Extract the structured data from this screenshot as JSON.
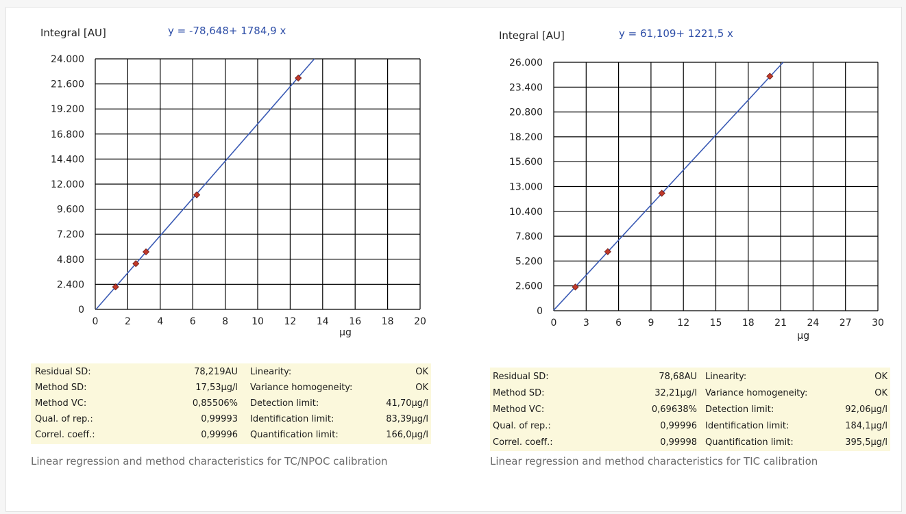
{
  "chart_data": [
    {
      "type": "scatter",
      "title": "",
      "equation": "y = -78,648+ 1784,9 x",
      "ylabel": "Integral [AU]",
      "xlabel": "µg",
      "xlim": [
        0,
        20
      ],
      "ylim": [
        0,
        24000
      ],
      "xticks": [
        "0",
        "2",
        "4",
        "6",
        "8",
        "10",
        "12",
        "14",
        "16",
        "18",
        "20"
      ],
      "yticks": [
        "0",
        "2.400",
        "4.800",
        "7.200",
        "9.600",
        "12.000",
        "14.400",
        "16.800",
        "19.200",
        "21.600",
        "24.000"
      ],
      "grid": true,
      "points": [
        {
          "x": 1.25,
          "y": 2150
        },
        {
          "x": 2.5,
          "y": 4380
        },
        {
          "x": 3.125,
          "y": 5510
        },
        {
          "x": 6.25,
          "y": 10970
        },
        {
          "x": 12.5,
          "y": 22160
        }
      ],
      "fit": {
        "intercept": -78.648,
        "slope": 1784.9
      },
      "colors": {
        "line": "#3b5bb5",
        "marker": "#c0392b",
        "grid": "#000000"
      }
    },
    {
      "type": "scatter",
      "title": "",
      "equation": "y = 61,109+ 1221,5 x",
      "ylabel": "Integral [AU]",
      "xlabel": "µg",
      "xlim": [
        0,
        30
      ],
      "ylim": [
        0,
        26000
      ],
      "xticks": [
        "0",
        "3",
        "6",
        "9",
        "12",
        "15",
        "18",
        "21",
        "24",
        "27",
        "30"
      ],
      "yticks": [
        "0",
        "2.600",
        "5.200",
        "7.800",
        "10.400",
        "13.000",
        "15.600",
        "18.200",
        "20.800",
        "23.400",
        "26.000"
      ],
      "grid": true,
      "points": [
        {
          "x": 2,
          "y": 2480
        },
        {
          "x": 5,
          "y": 6180
        },
        {
          "x": 10,
          "y": 12290
        },
        {
          "x": 20,
          "y": 24540
        }
      ],
      "fit": {
        "intercept": 61.109,
        "slope": 1221.5
      },
      "colors": {
        "line": "#3b5bb5",
        "marker": "#c0392b",
        "grid": "#000000"
      }
    }
  ],
  "tables": [
    {
      "rows": [
        {
          "l1": "Residual SD:",
          "v1": "78,219AU",
          "l2": "Linearity:",
          "v2": "OK"
        },
        {
          "l1": "Method SD:",
          "v1": "17,53µg/l",
          "l2": "Variance homogeneity:",
          "v2": "OK"
        },
        {
          "l1": "Method VC:",
          "v1": "0,85506%",
          "l2": "Detection limit:",
          "v2": "41,70µg/l"
        },
        {
          "l1": "Qual. of rep.:",
          "v1": "0,99993",
          "l2": "Identification limit:",
          "v2": "83,39µg/l"
        },
        {
          "l1": "Correl. coeff.:",
          "v1": "0,99996",
          "l2": "Quantification limit:",
          "v2": "166,0µg/l"
        }
      ]
    },
    {
      "rows": [
        {
          "l1": "Residual SD:",
          "v1": "78,68AU",
          "l2": "Linearity:",
          "v2": "OK"
        },
        {
          "l1": "Method SD:",
          "v1": "32,21µg/l",
          "l2": "Variance homogeneity:",
          "v2": "OK"
        },
        {
          "l1": "Method VC:",
          "v1": "0,69638%",
          "l2": "Detection limit:",
          "v2": "92,06µg/l"
        },
        {
          "l1": "Qual. of rep.:",
          "v1": "0,99996",
          "l2": "Identification limit:",
          "v2": "184,1µg/l"
        },
        {
          "l1": "Correl. coeff.:",
          "v1": "0,99998",
          "l2": "Quantification limit:",
          "v2": "395,5µg/l"
        }
      ]
    }
  ],
  "captions": [
    "Linear regression and method characteristics for TC/NPOC calibration",
    "Linear regression and method characteristics for TIC calibration"
  ]
}
